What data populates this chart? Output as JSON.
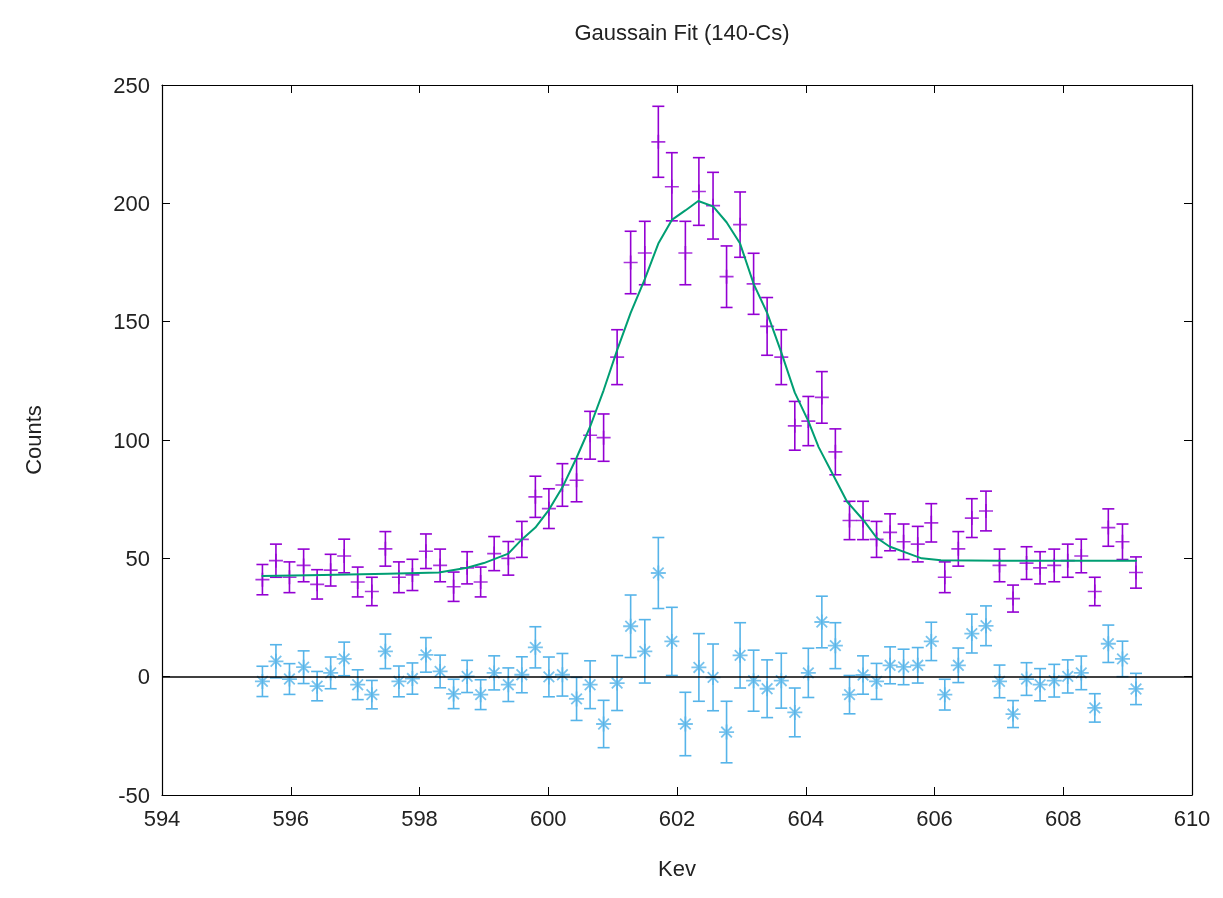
{
  "chart_data": {
    "type": "scatter",
    "title": "Gaussain Fit (140-Cs)",
    "xlabel": "Kev",
    "ylabel": "Counts",
    "xlim": [
      594,
      610
    ],
    "xticks": [
      594,
      596,
      598,
      600,
      602,
      604,
      606,
      608,
      610
    ],
    "ylim": [
      -50,
      250
    ],
    "yticks": [
      -50,
      0,
      50,
      100,
      150,
      200,
      250
    ],
    "x": [
      595.56,
      595.77,
      595.98,
      596.2,
      596.41,
      596.62,
      596.83,
      597.04,
      597.26,
      597.47,
      597.68,
      597.89,
      598.1,
      598.32,
      598.53,
      598.74,
      598.95,
      599.16,
      599.38,
      599.59,
      599.8,
      600.01,
      600.22,
      600.44,
      600.65,
      600.86,
      601.07,
      601.28,
      601.5,
      601.71,
      601.92,
      602.13,
      602.34,
      602.56,
      602.77,
      602.98,
      603.19,
      603.4,
      603.62,
      603.83,
      604.04,
      604.25,
      604.46,
      604.68,
      604.89,
      605.1,
      605.31,
      605.52,
      605.74,
      605.95,
      606.16,
      606.37,
      606.58,
      606.8,
      607.01,
      607.22,
      607.43,
      607.64,
      607.86,
      608.07,
      608.28,
      608.49,
      608.7,
      608.92,
      609.13
    ],
    "ref_lines": [
      {
        "axis": "y",
        "value": 0,
        "color": "#000000"
      }
    ],
    "series": [
      {
        "color": "#9400d3",
        "marker": "cross",
        "values": [
          41,
          49,
          42,
          47,
          39,
          45,
          51,
          40,
          36,
          54,
          42,
          43,
          53,
          47,
          38,
          46,
          40,
          52,
          50,
          58,
          76,
          71,
          81,
          83,
          102,
          101,
          135,
          175,
          179,
          226,
          207,
          179,
          205,
          199,
          169,
          191,
          166,
          148,
          135,
          106,
          108,
          118,
          95,
          66,
          66,
          58,
          61,
          57,
          56,
          65,
          42,
          54,
          67,
          70,
          47,
          33,
          48,
          46,
          47,
          49,
          51,
          36,
          63,
          57,
          44
        ],
        "errors": [
          6.4,
          7,
          6.5,
          6.9,
          6.2,
          6.7,
          7.1,
          6.3,
          6,
          7.3,
          6.5,
          6.6,
          7.3,
          6.9,
          6.2,
          6.8,
          6.3,
          7.2,
          7.1,
          7.6,
          8.7,
          8.4,
          9,
          9.1,
          10.1,
          10,
          11.6,
          13.2,
          13.4,
          15,
          14.4,
          13.4,
          14.3,
          14.1,
          13,
          13.8,
          12.9,
          12.2,
          11.6,
          10.3,
          10.4,
          10.9,
          9.7,
          8.1,
          8.1,
          7.6,
          7.8,
          7.5,
          7.5,
          8.1,
          6.5,
          7.3,
          8.2,
          8.4,
          6.9,
          5.7,
          6.9,
          6.8,
          6.9,
          7,
          7.1,
          6,
          7.9,
          7.5,
          6.6
        ]
      },
      {
        "color": "#56b4e9",
        "marker": "star",
        "values": [
          -2,
          6.5,
          -1,
          4,
          -4,
          1.6,
          7.5,
          -3.4,
          -7.6,
          10.7,
          -2,
          -0.8,
          9.2,
          2.2,
          -7.3,
          0.1,
          -7.6,
          1.6,
          -3.4,
          0.8,
          12.4,
          -0.1,
          0.8,
          -9.4,
          -3.4,
          -20,
          -2.7,
          21.3,
          10.7,
          43.8,
          14.9,
          -20,
          3.9,
          -0.3,
          -23.4,
          9,
          -1.7,
          -5.1,
          -1.7,
          -15.1,
          1.6,
          23.1,
          13.1,
          -7.6,
          0.7,
          -2,
          4.8,
          4.1,
          4.8,
          14.9,
          -7.6,
          4.8,
          18.2,
          21.5,
          -2,
          -15.8,
          -1,
          -3.4,
          -1.7,
          0.1,
          1.6,
          -13.2,
          13.9,
          7.5,
          -5.2
        ],
        "errors": [
          6.4,
          7,
          6.5,
          6.9,
          6.2,
          6.7,
          7.1,
          6.3,
          6,
          7.3,
          6.5,
          6.6,
          7.3,
          6.9,
          6.2,
          6.8,
          6.3,
          7.2,
          7.1,
          7.6,
          8.7,
          8.4,
          9,
          9.1,
          10.1,
          10,
          11.6,
          13.2,
          13.4,
          15,
          14.4,
          13.4,
          14.3,
          14.1,
          13,
          13.8,
          12.9,
          12.2,
          11.6,
          10.3,
          10.4,
          10.9,
          9.7,
          8.1,
          8.1,
          7.6,
          7.8,
          7.5,
          7.5,
          8.1,
          6.5,
          7.3,
          8.2,
          8.4,
          6.9,
          5.7,
          6.9,
          6.8,
          6.9,
          7,
          7.1,
          6,
          7.9,
          7.5,
          6.6
        ]
      },
      {
        "type": "line",
        "color": "#009e73",
        "marker": "none",
        "line_style": "solid",
        "x": [
          595.56,
          596.5,
          597.5,
          598.3,
          598.74,
          599.0,
          599.38,
          599.59,
          599.8,
          600.01,
          600.22,
          600.44,
          600.65,
          600.86,
          601.07,
          601.28,
          601.5,
          601.71,
          601.92,
          602.13,
          602.33,
          602.56,
          602.77,
          602.98,
          603.19,
          603.4,
          603.62,
          603.83,
          604.04,
          604.2,
          604.43,
          604.64,
          604.9,
          605.1,
          605.3,
          605.6,
          605.8,
          606.1,
          607,
          609.13
        ],
        "values": [
          42.5,
          43,
          43.5,
          44,
          46,
          48,
          52,
          58,
          63,
          70.5,
          80,
          92.5,
          105.6,
          121,
          138,
          153.7,
          168,
          183,
          193,
          197,
          201,
          198.7,
          192,
          183,
          166,
          153.7,
          137,
          120,
          108,
          97,
          85,
          74,
          66,
          58.7,
          55,
          52,
          50,
          49.2,
          49,
          49
        ]
      }
    ]
  }
}
